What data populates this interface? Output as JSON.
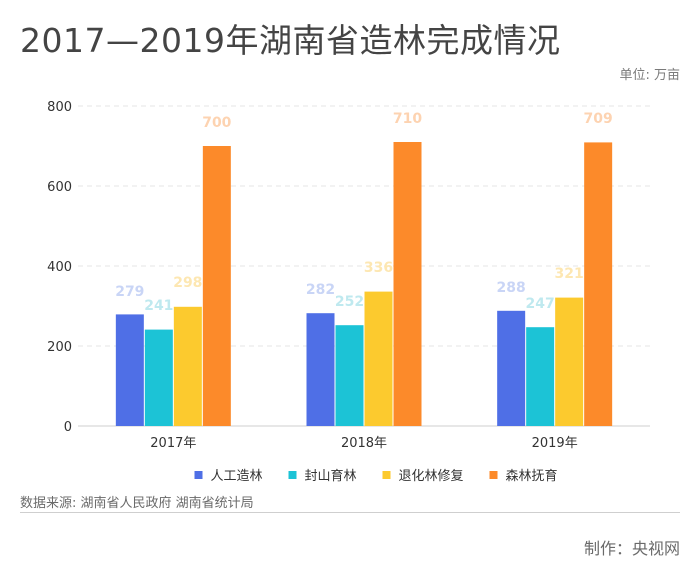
{
  "title": "2017—2019年湖南省造林完成情况",
  "unit_label": "单位: 万亩",
  "source": "数据来源:  湖南省人民政府 湖南省统计局",
  "credit": "制作：央视网",
  "chart_data": {
    "type": "bar",
    "categories": [
      "2017年",
      "2018年",
      "2019年"
    ],
    "ylim": [
      0,
      800
    ],
    "yticks": [
      0,
      200,
      400,
      600,
      800
    ],
    "grid": true,
    "legend_position": "bottom",
    "series": [
      {
        "name": "人工造林",
        "values": [
          279,
          282,
          288
        ],
        "color": "#4f6fe6",
        "label_color": "#c9d5f6"
      },
      {
        "name": "封山育林",
        "values": [
          241,
          252,
          247
        ],
        "color": "#1cc3d6",
        "label_color": "#bfe9ef"
      },
      {
        "name": "退化林修复",
        "values": [
          298,
          336,
          321
        ],
        "color": "#fcca2e",
        "label_color": "#fde7b2"
      },
      {
        "name": "森林抚育",
        "values": [
          700,
          710,
          709
        ],
        "color": "#fc8a2a",
        "label_color": "#fdd3b1"
      }
    ]
  }
}
